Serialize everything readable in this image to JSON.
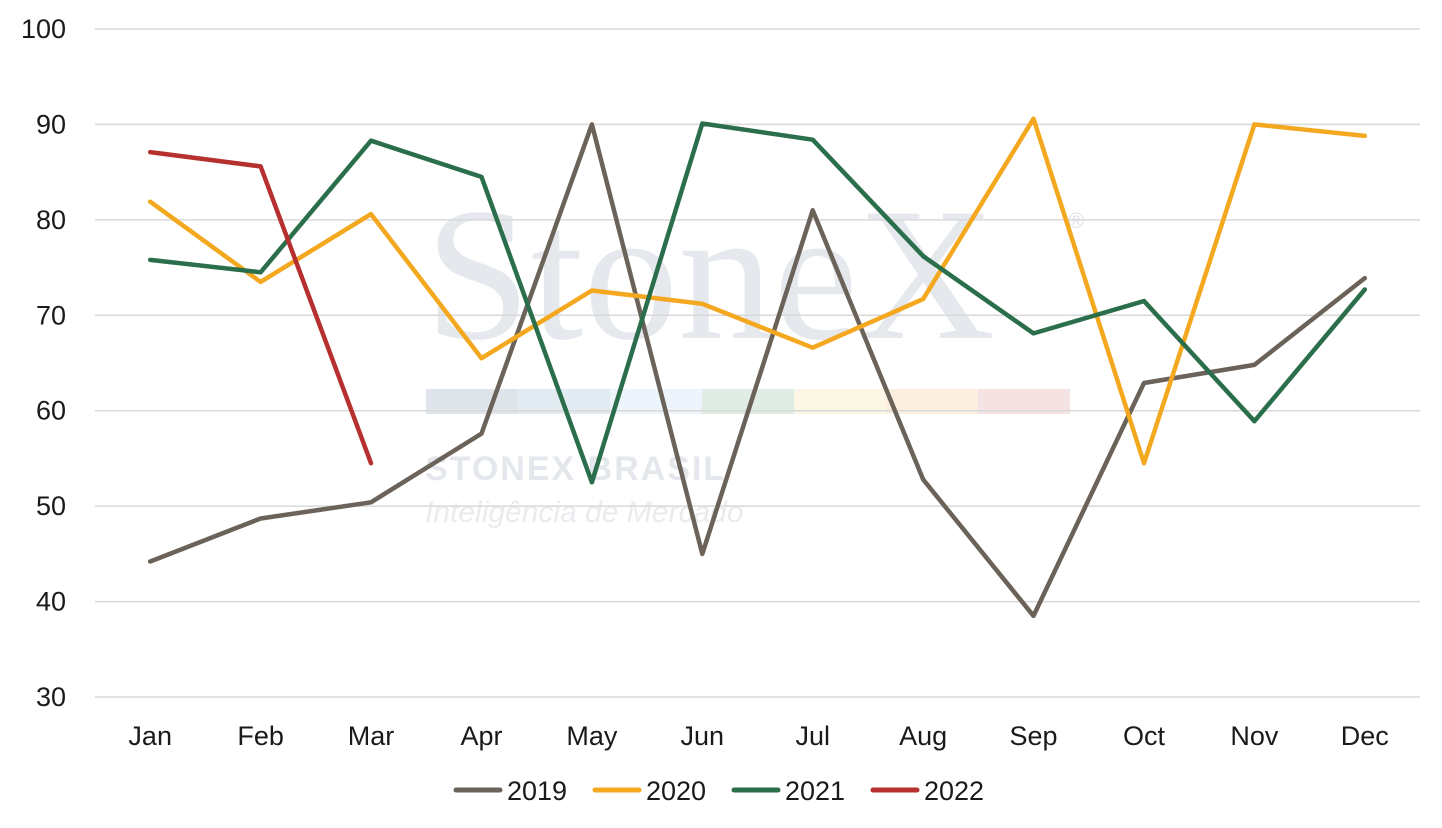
{
  "watermark": {
    "logo": "StoneX",
    "registered": "®",
    "company": "STONEX BRASIL",
    "tagline": "Inteligência de Mercado",
    "stripe_colors": [
      "#dfe4ea",
      "#e3ebf2",
      "#eef4fb",
      "#e0ede4",
      "#fbf6e6",
      "#fcefe0",
      "#f5e3e3"
    ]
  },
  "chart_data": {
    "type": "line",
    "title": "",
    "xlabel": "",
    "ylabel": "",
    "categories": [
      "Jan",
      "Feb",
      "Mar",
      "Apr",
      "May",
      "Jun",
      "Jul",
      "Aug",
      "Sep",
      "Oct",
      "Nov",
      "Dec"
    ],
    "ylim": [
      30,
      100
    ],
    "yticks": [
      30,
      40,
      50,
      60,
      70,
      80,
      90,
      100
    ],
    "grid": "horizontal",
    "legend_position": "bottom",
    "series": [
      {
        "name": "2019",
        "color": "#6b635a",
        "values": [
          44.2,
          48.7,
          50.4,
          57.6,
          90.0,
          45.0,
          81.0,
          52.8,
          38.5,
          62.9,
          64.8,
          73.9
        ]
      },
      {
        "name": "2020",
        "color": "#f3a81f",
        "values": [
          81.9,
          73.5,
          80.6,
          65.5,
          72.6,
          71.2,
          66.6,
          71.7,
          90.6,
          54.5,
          90.0,
          88.8
        ]
      },
      {
        "name": "2021",
        "color": "#2a6e4c",
        "values": [
          75.8,
          74.5,
          88.3,
          84.5,
          52.5,
          90.1,
          88.4,
          76.2,
          68.1,
          71.5,
          58.9,
          72.7
        ]
      },
      {
        "name": "2022",
        "color": "#b5302f",
        "values": [
          87.1,
          85.6,
          54.5,
          null,
          null,
          null,
          null,
          null,
          null,
          null,
          null,
          null
        ]
      }
    ]
  }
}
